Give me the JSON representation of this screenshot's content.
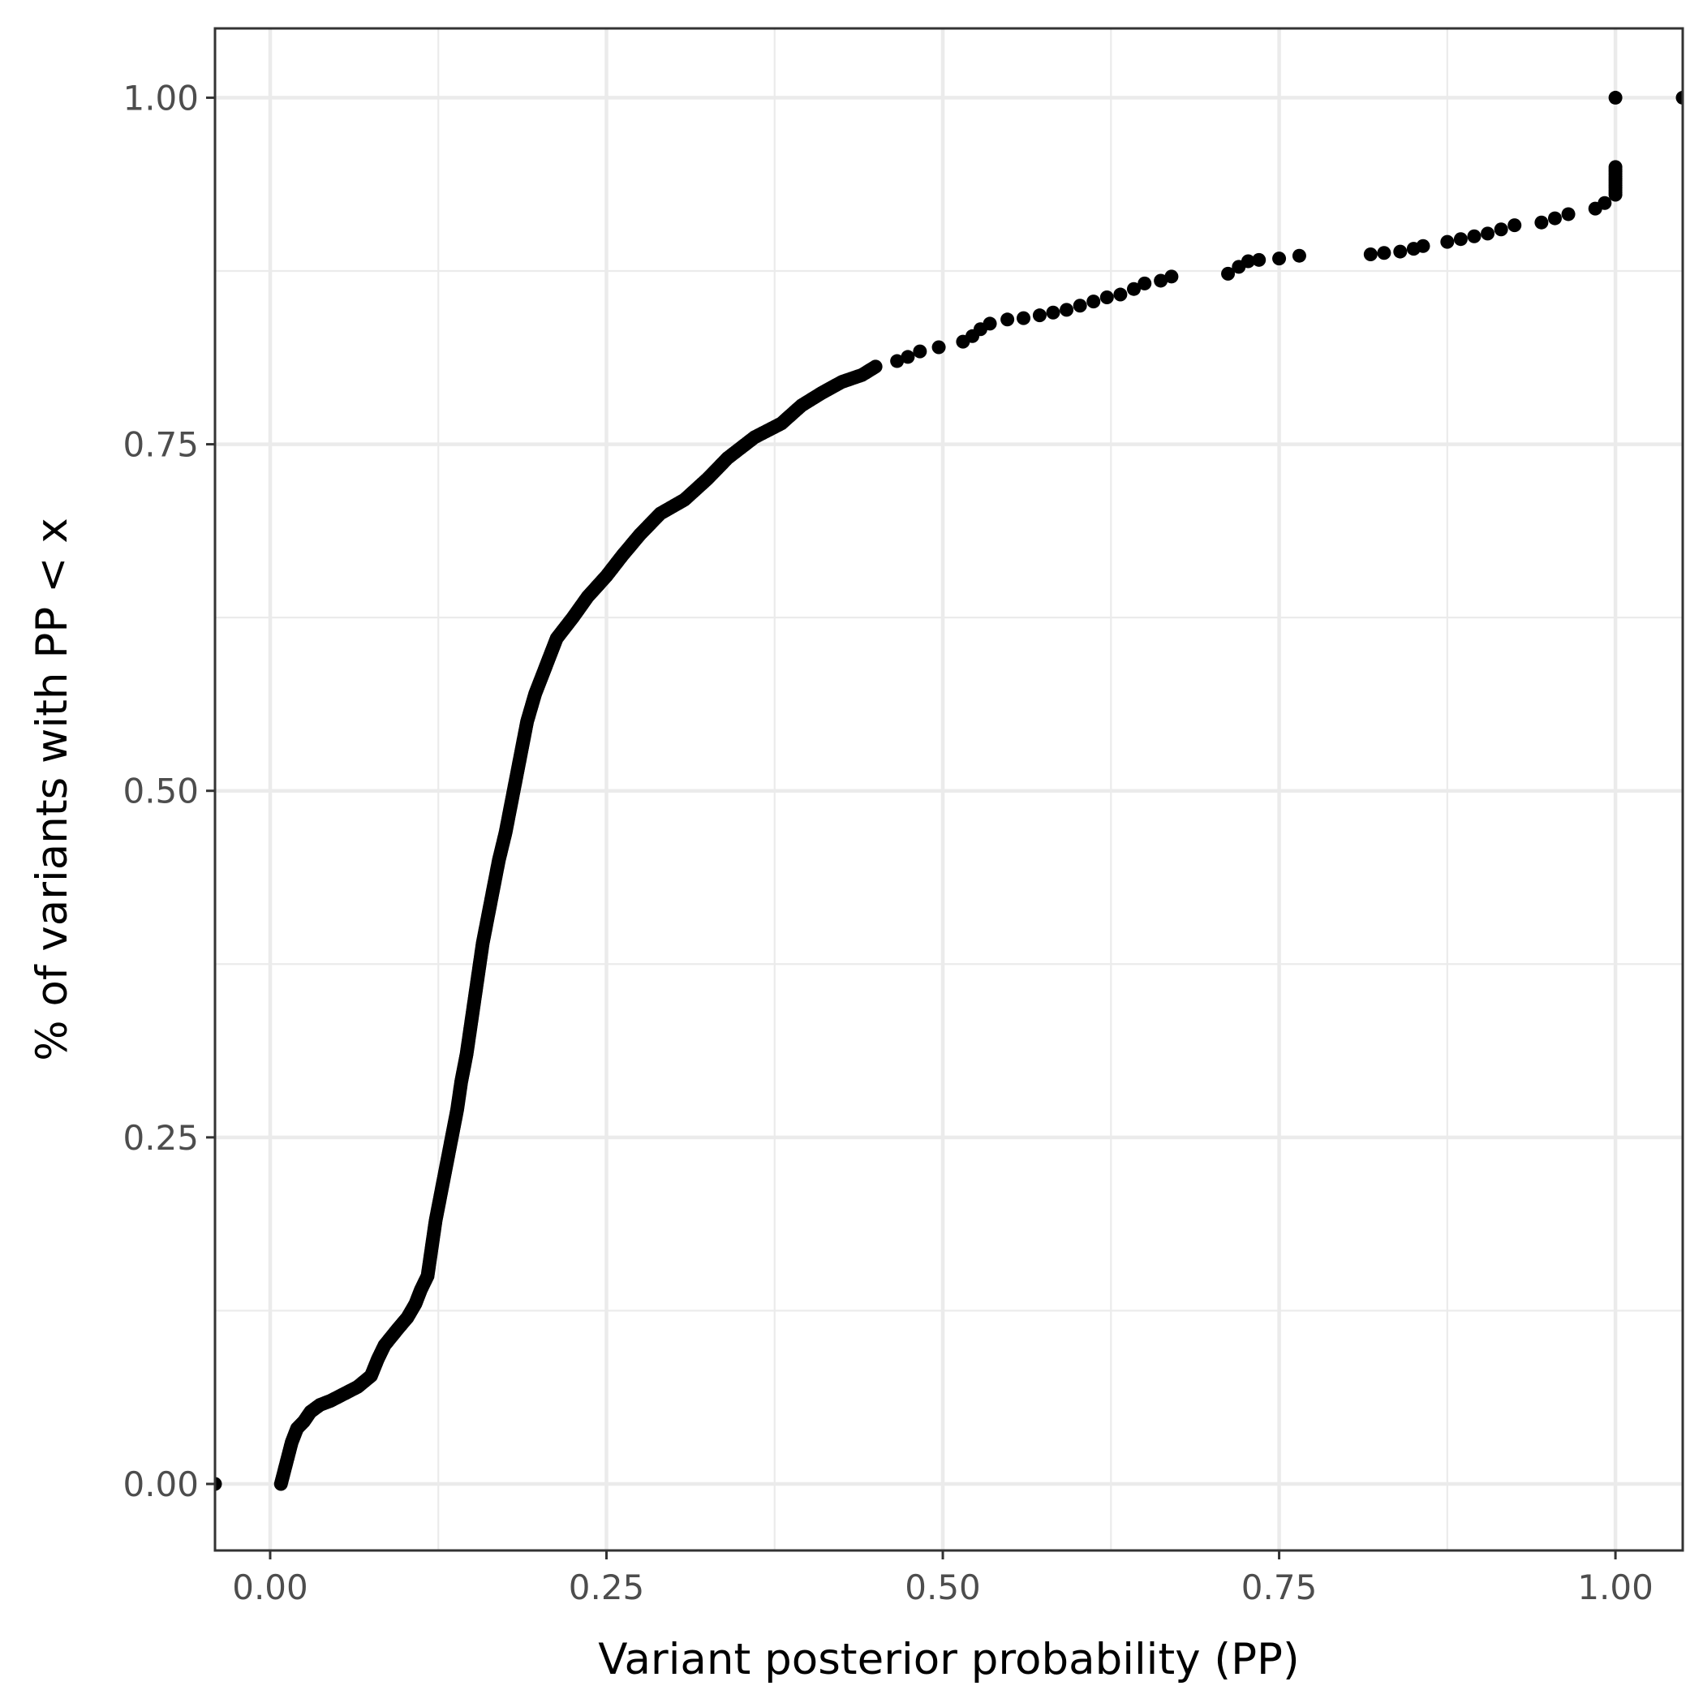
{
  "chart_data": {
    "type": "scatter",
    "xlabel": "Variant posterior probability (PP)",
    "ylabel": "% of variants with PP < x",
    "xlim": [
      -0.041,
      1.05
    ],
    "ylim": [
      -0.048,
      1.05
    ],
    "x_ticks": [
      "0.00",
      "0.25",
      "0.50",
      "0.75",
      "1.00"
    ],
    "y_ticks": [
      "0.00",
      "0.25",
      "0.50",
      "0.75",
      "1.00"
    ],
    "grid": true,
    "point_color": "#000000",
    "curve": [
      [
        0.008,
        0.0
      ],
      [
        0.012,
        0.015
      ],
      [
        0.016,
        0.03
      ],
      [
        0.02,
        0.04
      ],
      [
        0.025,
        0.045
      ],
      [
        0.03,
        0.052
      ],
      [
        0.037,
        0.057
      ],
      [
        0.045,
        0.06
      ],
      [
        0.055,
        0.065
      ],
      [
        0.065,
        0.07
      ],
      [
        0.075,
        0.078
      ],
      [
        0.08,
        0.09
      ],
      [
        0.085,
        0.1
      ],
      [
        0.095,
        0.112
      ],
      [
        0.102,
        0.12
      ],
      [
        0.108,
        0.13
      ],
      [
        0.112,
        0.14
      ],
      [
        0.117,
        0.15
      ],
      [
        0.12,
        0.17
      ],
      [
        0.123,
        0.19
      ],
      [
        0.127,
        0.21
      ],
      [
        0.131,
        0.23
      ],
      [
        0.135,
        0.25
      ],
      [
        0.139,
        0.27
      ],
      [
        0.142,
        0.29
      ],
      [
        0.146,
        0.31
      ],
      [
        0.149,
        0.33
      ],
      [
        0.152,
        0.35
      ],
      [
        0.155,
        0.37
      ],
      [
        0.158,
        0.39
      ],
      [
        0.162,
        0.41
      ],
      [
        0.166,
        0.43
      ],
      [
        0.17,
        0.45
      ],
      [
        0.175,
        0.47
      ],
      [
        0.179,
        0.49
      ],
      [
        0.183,
        0.51
      ],
      [
        0.187,
        0.53
      ],
      [
        0.191,
        0.55
      ],
      [
        0.197,
        0.57
      ],
      [
        0.205,
        0.59
      ],
      [
        0.213,
        0.61
      ],
      [
        0.225,
        0.625
      ],
      [
        0.236,
        0.64
      ],
      [
        0.25,
        0.655
      ],
      [
        0.262,
        0.67
      ],
      [
        0.275,
        0.685
      ],
      [
        0.29,
        0.7
      ],
      [
        0.308,
        0.71
      ],
      [
        0.325,
        0.725
      ],
      [
        0.34,
        0.74
      ],
      [
        0.36,
        0.755
      ],
      [
        0.38,
        0.765
      ],
      [
        0.395,
        0.778
      ],
      [
        0.41,
        0.787
      ],
      [
        0.425,
        0.795
      ],
      [
        0.44,
        0.8
      ],
      [
        0.45,
        0.806
      ]
    ],
    "points": [
      [
        -0.041,
        0.0
      ],
      [
        0.466,
        0.81
      ],
      [
        0.474,
        0.813
      ],
      [
        0.483,
        0.817
      ],
      [
        0.497,
        0.82
      ],
      [
        0.515,
        0.824
      ],
      [
        0.522,
        0.828
      ],
      [
        0.528,
        0.833
      ],
      [
        0.535,
        0.837
      ],
      [
        0.548,
        0.84
      ],
      [
        0.56,
        0.841
      ],
      [
        0.572,
        0.843
      ],
      [
        0.582,
        0.845
      ],
      [
        0.592,
        0.847
      ],
      [
        0.602,
        0.85
      ],
      [
        0.612,
        0.853
      ],
      [
        0.622,
        0.856
      ],
      [
        0.632,
        0.858
      ],
      [
        0.642,
        0.862
      ],
      [
        0.65,
        0.866
      ],
      [
        0.662,
        0.868
      ],
      [
        0.67,
        0.871
      ],
      [
        0.712,
        0.873
      ],
      [
        0.72,
        0.878
      ],
      [
        0.727,
        0.882
      ],
      [
        0.735,
        0.883
      ],
      [
        0.75,
        0.884
      ],
      [
        0.765,
        0.886
      ],
      [
        0.818,
        0.887
      ],
      [
        0.828,
        0.888
      ],
      [
        0.84,
        0.889
      ],
      [
        0.85,
        0.891
      ],
      [
        0.857,
        0.893
      ],
      [
        0.875,
        0.896
      ],
      [
        0.885,
        0.898
      ],
      [
        0.895,
        0.9
      ],
      [
        0.905,
        0.902
      ],
      [
        0.915,
        0.905
      ],
      [
        0.925,
        0.908
      ],
      [
        0.945,
        0.91
      ],
      [
        0.955,
        0.913
      ],
      [
        0.965,
        0.916
      ],
      [
        0.985,
        0.92
      ],
      [
        0.992,
        0.924
      ],
      [
        1.0,
        1.0
      ],
      [
        1.05,
        1.0
      ]
    ],
    "vertical_run": {
      "x": 1.0,
      "y_from": 0.93,
      "y_to": 0.95
    }
  }
}
